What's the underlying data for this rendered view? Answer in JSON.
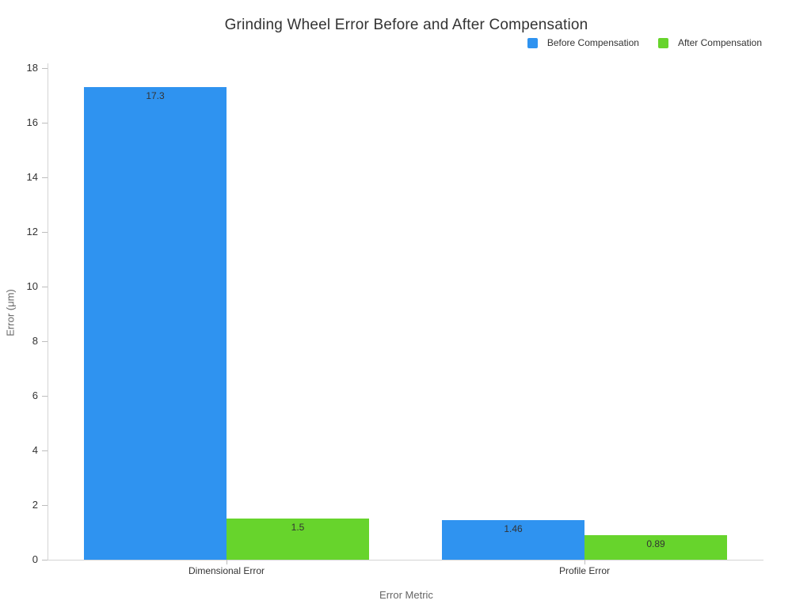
{
  "chart_data": {
    "type": "bar",
    "title": "Grinding Wheel Error Before and After Compensation",
    "xlabel": "Error Metric",
    "ylabel": "Error (μm)",
    "categories": [
      "Dimensional Error",
      "Profile Error"
    ],
    "series": [
      {
        "name": "Before Compensation",
        "color": "#2F93F0",
        "values": [
          17.3,
          1.46
        ],
        "value_labels": [
          "17.3",
          "1.46"
        ]
      },
      {
        "name": "After Compensation",
        "color": "#67D42C",
        "values": [
          1.5,
          0.89
        ],
        "value_labels": [
          "1.5",
          "0.89"
        ]
      }
    ],
    "ylim": [
      0,
      18
    ],
    "yticks": [
      0,
      2,
      4,
      6,
      8,
      10,
      12,
      14,
      16,
      18
    ],
    "grid": false,
    "legend_position": "top-right",
    "background_color": "#ffffff",
    "text_color": "#333333",
    "axis_title_color": "#666666",
    "axis_line_color": "#d4d4d4"
  }
}
